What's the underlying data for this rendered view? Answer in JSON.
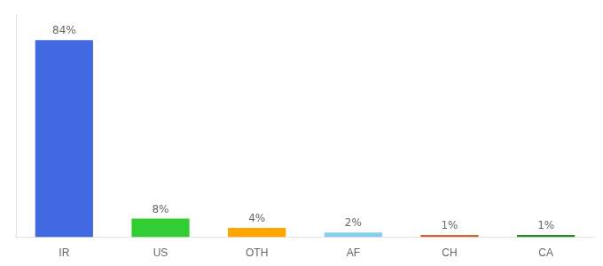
{
  "chart_data": {
    "type": "bar",
    "categories": [
      "IR",
      "US",
      "OTH",
      "AF",
      "CH",
      "CA"
    ],
    "values": [
      84,
      8,
      4,
      2,
      1,
      1
    ],
    "value_labels": [
      "84%",
      "8%",
      "4%",
      "2%",
      "1%",
      "1%"
    ],
    "colors": [
      "#4169e1",
      "#32cd32",
      "#ffa500",
      "#87ceeb",
      "#cd6633",
      "#228b22"
    ],
    "ylim": [
      0,
      95
    ],
    "grid": false,
    "legend": false,
    "data_labels": true,
    "tick_labels": "x"
  }
}
